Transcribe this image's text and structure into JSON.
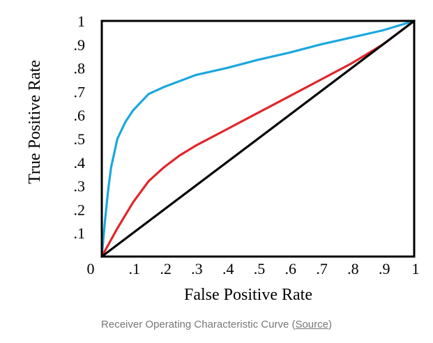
{
  "chart_data": {
    "type": "line",
    "xlabel": "False Positive Rate",
    "ylabel": "True Positive Rate",
    "xlim": [
      0,
      1
    ],
    "ylim": [
      0,
      1
    ],
    "grid": false,
    "x_tick_labels": [
      "0",
      ".1",
      ".2",
      ".3",
      ".4",
      ".5",
      ".6",
      ".7",
      ".8",
      ".9",
      "1"
    ],
    "y_tick_labels": [
      ".1",
      ".2",
      ".3",
      ".4",
      ".5",
      ".6",
      ".7",
      ".8",
      ".9",
      "1"
    ],
    "series": [
      {
        "color": "#1aa7e0",
        "points": [
          [
            0,
            0
          ],
          [
            0.01,
            0.15
          ],
          [
            0.02,
            0.28
          ],
          [
            0.03,
            0.38
          ],
          [
            0.05,
            0.5
          ],
          [
            0.075,
            0.57
          ],
          [
            0.1,
            0.62
          ],
          [
            0.15,
            0.69
          ],
          [
            0.2,
            0.72
          ],
          [
            0.3,
            0.77
          ],
          [
            0.4,
            0.8
          ],
          [
            0.5,
            0.835
          ],
          [
            0.6,
            0.865
          ],
          [
            0.7,
            0.9
          ],
          [
            0.8,
            0.93
          ],
          [
            0.9,
            0.96
          ],
          [
            1,
            1
          ]
        ]
      },
      {
        "color": "#e0262a",
        "points": [
          [
            0,
            0
          ],
          [
            0.05,
            0.12
          ],
          [
            0.1,
            0.23
          ],
          [
            0.15,
            0.32
          ],
          [
            0.2,
            0.38
          ],
          [
            0.25,
            0.43
          ],
          [
            0.3,
            0.47
          ],
          [
            0.4,
            0.54
          ],
          [
            0.5,
            0.61
          ],
          [
            0.6,
            0.68
          ],
          [
            0.7,
            0.75
          ],
          [
            0.8,
            0.82
          ],
          [
            0.9,
            0.9
          ],
          [
            1,
            1
          ]
        ]
      },
      {
        "color": "#000000",
        "points": [
          [
            0,
            0
          ],
          [
            1,
            1
          ]
        ]
      }
    ]
  },
  "caption": {
    "text": "Receiver Operating Characteristic Curve (",
    "link": "Source",
    "close": ")"
  }
}
